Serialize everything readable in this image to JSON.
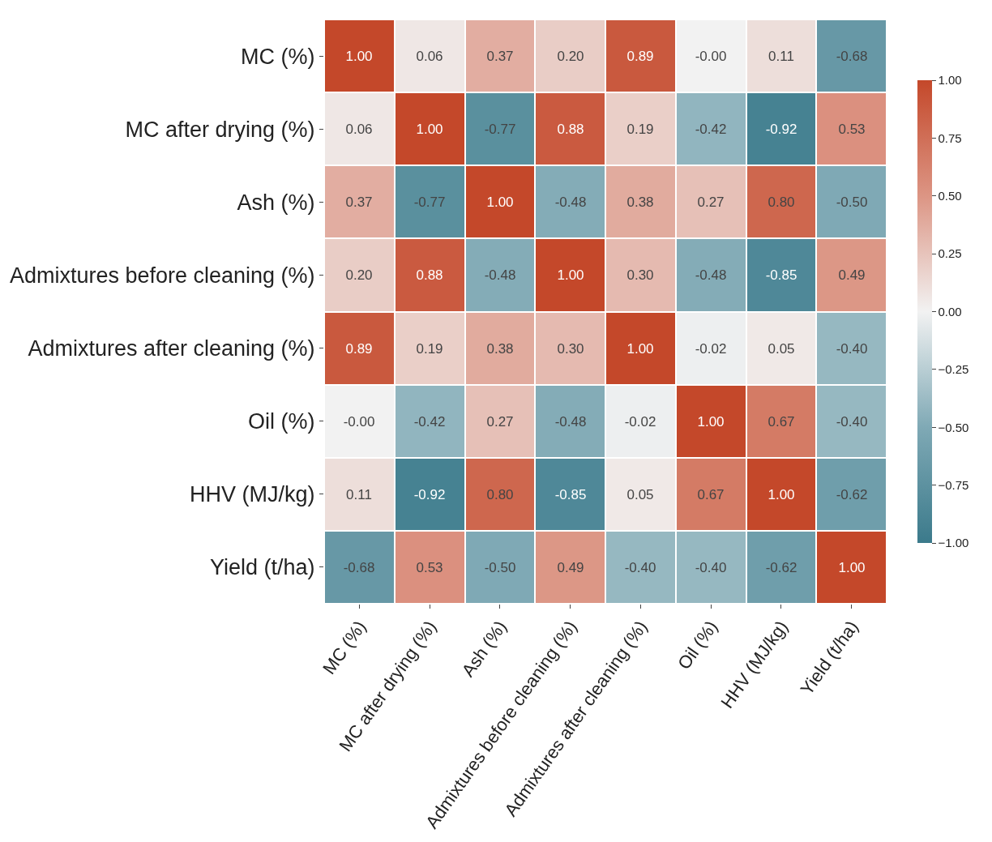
{
  "chart_data": {
    "type": "heatmap",
    "categories": [
      "MC (%)",
      "MC after drying (%)",
      "Ash (%)",
      "Admixtures before cleaning (%)",
      "Admixtures after cleaning (%)",
      "Oil (%)",
      "HHV (MJ/kg)",
      "Yield (t/ha)"
    ],
    "y_categories": [
      "MC (%)",
      "MC after drying (%)",
      "Ash (%)",
      "Admixtures before cleaning (%)",
      "Admixtures after cleaning (%)",
      "Oil (%)",
      "HHV (MJ/kg)",
      "Yield (t/ha)"
    ],
    "cells": [
      [
        1.0,
        0.06,
        0.37,
        0.2,
        0.89,
        -0.0,
        0.11,
        -0.68
      ],
      [
        0.06,
        1.0,
        -0.77,
        0.88,
        0.19,
        -0.42,
        -0.92,
        0.53
      ],
      [
        0.37,
        -0.77,
        1.0,
        -0.48,
        0.38,
        0.27,
        0.8,
        -0.5
      ],
      [
        0.2,
        0.88,
        -0.48,
        1.0,
        0.3,
        -0.48,
        -0.85,
        0.49
      ],
      [
        0.89,
        0.19,
        0.38,
        0.3,
        1.0,
        -0.02,
        0.05,
        -0.4
      ],
      [
        -0.0,
        -0.42,
        0.27,
        -0.48,
        -0.02,
        1.0,
        0.67,
        -0.4
      ],
      [
        0.11,
        -0.92,
        0.8,
        -0.85,
        0.05,
        0.67,
        1.0,
        -0.62
      ],
      [
        -0.68,
        0.53,
        -0.5,
        0.49,
        -0.4,
        -0.4,
        -0.62,
        1.0
      ]
    ],
    "cell_labels": [
      [
        "1.00",
        "0.06",
        "0.37",
        "0.20",
        "0.89",
        "-0.00",
        "0.11",
        "-0.68"
      ],
      [
        "0.06",
        "1.00",
        "-0.77",
        "0.88",
        "0.19",
        "-0.42",
        "-0.92",
        "0.53"
      ],
      [
        "0.37",
        "-0.77",
        "1.00",
        "-0.48",
        "0.38",
        "0.27",
        "0.80",
        "-0.50"
      ],
      [
        "0.20",
        "0.88",
        "-0.48",
        "1.00",
        "0.30",
        "-0.48",
        "-0.85",
        "0.49"
      ],
      [
        "0.89",
        "0.19",
        "0.38",
        "0.30",
        "1.00",
        "-0.02",
        "0.05",
        "-0.40"
      ],
      [
        "-0.00",
        "-0.42",
        "0.27",
        "-0.48",
        "-0.02",
        "1.00",
        "0.67",
        "-0.40"
      ],
      [
        "0.11",
        "-0.92",
        "0.80",
        "-0.85",
        "0.05",
        "0.67",
        "1.00",
        "-0.62"
      ],
      [
        "-0.68",
        "0.53",
        "-0.50",
        "0.49",
        "-0.40",
        "-0.40",
        "-0.62",
        "1.00"
      ]
    ],
    "clim": [
      -1,
      1
    ],
    "cticks": [
      {
        "value": 1,
        "label": "1.00"
      },
      {
        "value": 0.75,
        "label": "0.75"
      },
      {
        "value": 0.5,
        "label": "0.50"
      },
      {
        "value": 0.25,
        "label": "0.25"
      },
      {
        "value": 0,
        "label": "0.00"
      },
      {
        "value": -0.25,
        "label": "−0.25"
      },
      {
        "value": -0.5,
        "label": "−0.50"
      },
      {
        "value": -0.75,
        "label": "−0.75"
      },
      {
        "value": -1,
        "label": "−1.00"
      }
    ]
  }
}
